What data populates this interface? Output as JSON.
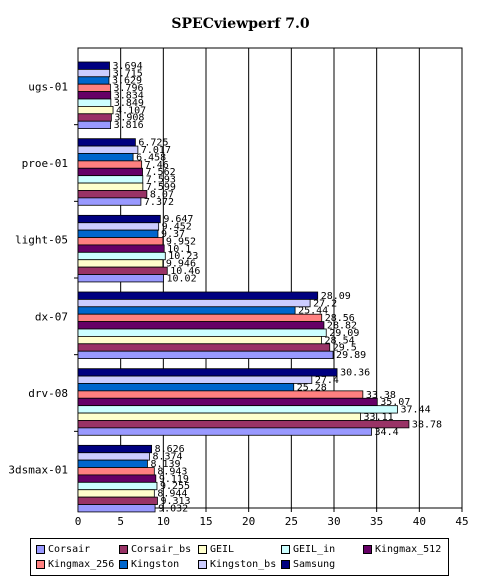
{
  "chart_data": {
    "type": "bar",
    "orientation": "horizontal",
    "title": "SPECviewperf 7.0",
    "categories": [
      "ugs-01",
      "proe-01",
      "light-05",
      "dx-07",
      "drv-08",
      "3dsmax-01"
    ],
    "xlim": [
      0,
      45
    ],
    "xticks": [
      0,
      5,
      10,
      15,
      20,
      25,
      30,
      35,
      40,
      45
    ],
    "grid": "vertical",
    "legend_position": "bottom",
    "series": [
      {
        "name": "Samsung",
        "color": "#000080",
        "values": [
          3.694,
          6.725,
          9.647,
          28.09,
          30.36,
          8.626
        ],
        "labels": [
          "3.694",
          "6.725",
          "9.647",
          "28.09",
          "30.36",
          "8.626"
        ]
      },
      {
        "name": "Kingston_bs",
        "color": "#ccccff",
        "values": [
          3.715,
          7.017,
          9.452,
          27.2,
          27.4,
          8.374
        ],
        "labels": [
          "3.715",
          "7.017",
          "9.452",
          "27.2",
          "27.4",
          "8.374"
        ]
      },
      {
        "name": "Kingston",
        "color": "#0066cc",
        "values": [
          3.629,
          6.458,
          9.37,
          25.44,
          25.28,
          8.139
        ],
        "labels": [
          "3.629",
          "6.458",
          "9.37",
          "25.44",
          "25.28",
          "8.139"
        ]
      },
      {
        "name": "Kingmax_256",
        "color": "#ff8080",
        "values": [
          3.796,
          7.46,
          9.952,
          28.56,
          33.38,
          8.943
        ],
        "labels": [
          "3.796",
          "7.46",
          "9.952",
          "28.56",
          "33.38",
          "8.943"
        ]
      },
      {
        "name": "Kingmax_512",
        "color": "#660066",
        "values": [
          3.834,
          7.562,
          10.1,
          28.82,
          35.07,
          9.119
        ],
        "labels": [
          "3.834",
          "7.562",
          "10.1",
          "28.82",
          "35.07",
          "9.119"
        ]
      },
      {
        "name": "GEIL_in",
        "color": "#ccffff",
        "values": [
          3.849,
          7.593,
          10.23,
          29.09,
          37.44,
          9.255
        ],
        "labels": [
          "3.849",
          "7.593",
          "10.23",
          "29.09",
          "37.44",
          "9.255"
        ]
      },
      {
        "name": "GEIL",
        "color": "#ffffcc",
        "values": [
          4.107,
          7.599,
          9.946,
          28.54,
          33.11,
          8.944
        ],
        "labels": [
          "4.107",
          "7.599",
          "9.946",
          "28.54",
          "33.11",
          "8.944"
        ]
      },
      {
        "name": "Corsair_bs",
        "color": "#993366",
        "values": [
          3.908,
          8.07,
          10.46,
          29.5,
          38.78,
          9.313
        ],
        "labels": [
          "3.908",
          "8.07",
          "10.46",
          "29.5",
          "38.78",
          "9.313"
        ]
      },
      {
        "name": "Corsair",
        "color": "#9999ff",
        "values": [
          3.816,
          7.372,
          10.02,
          29.89,
          34.4,
          9.032
        ],
        "labels": [
          "3.816",
          "7.372",
          "10.02",
          "29.89",
          "34.4",
          "9.032"
        ]
      }
    ],
    "legend": [
      {
        "name": "Corsair",
        "color": "#9999ff"
      },
      {
        "name": "Corsair_bs",
        "color": "#993366"
      },
      {
        "name": "GEIL",
        "color": "#ffffcc"
      },
      {
        "name": "GEIL_in",
        "color": "#ccffff"
      },
      {
        "name": "Kingmax_512",
        "color": "#660066"
      },
      {
        "name": "Kingmax_256",
        "color": "#ff8080"
      },
      {
        "name": "Kingston",
        "color": "#0066cc"
      },
      {
        "name": "Kingston_bs",
        "color": "#ccccff"
      },
      {
        "name": "Samsung",
        "color": "#000080"
      }
    ]
  }
}
